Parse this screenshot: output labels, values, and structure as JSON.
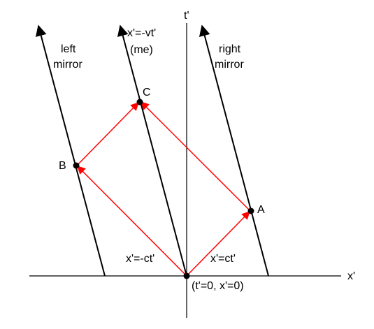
{
  "diagram": {
    "axes": {
      "time_label": "t'",
      "space_label": "x'"
    },
    "worldlines": {
      "left_mirror": {
        "line1": "left",
        "line2": "mirror"
      },
      "me": {
        "line1": "x'=-vt'",
        "line2": "(me)"
      },
      "right_mirror": {
        "line1": "right",
        "line2": "mirror"
      }
    },
    "events": {
      "A": "A",
      "B": "B",
      "C": "C",
      "origin": "(t'=0, x'=0)"
    },
    "light_rays": {
      "left_label": "x'=-ct'",
      "right_label": "x'=ct'"
    },
    "colors": {
      "axis": "#000000",
      "worldline": "#000000",
      "light_ray": "#ff0000",
      "event_dot": "#000000"
    }
  }
}
